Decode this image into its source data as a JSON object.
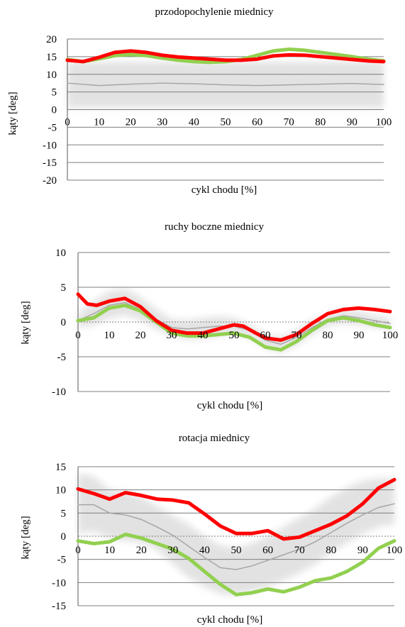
{
  "chart_data": [
    {
      "type": "line",
      "title": "przodopochylenie miednicy",
      "xlabel": "cykl chodu [%]",
      "ylabel": "kąty [deg]",
      "xlim": [
        0,
        100
      ],
      "ylim": [
        -20,
        20
      ],
      "xticks": [
        0,
        10,
        20,
        30,
        40,
        50,
        60,
        70,
        80,
        90,
        100
      ],
      "yticks": [
        -20,
        -15,
        -10,
        -5,
        0,
        5,
        10,
        15,
        20
      ],
      "gridlines": [
        -20,
        -15,
        -10,
        -5,
        0,
        5,
        10,
        15,
        20
      ],
      "reference_band": {
        "color": "#d9d9d9",
        "x": [
          0,
          10,
          20,
          30,
          40,
          50,
          60,
          70,
          80,
          90,
          100
        ],
        "lower": [
          0.5,
          0.5,
          0.5,
          0.5,
          0.5,
          0.5,
          0.5,
          0.5,
          0.5,
          0.5,
          0.5
        ],
        "upper": [
          13.5,
          13.5,
          13.5,
          13.5,
          13.5,
          13.5,
          13.5,
          13.5,
          13.5,
          13.5,
          13.5
        ]
      },
      "series": [
        {
          "color": "#a6a6a6",
          "width": 1.5,
          "x": [
            0,
            10,
            20,
            30,
            40,
            50,
            60,
            70,
            80,
            90,
            100
          ],
          "values": [
            7.5,
            6.8,
            7.2,
            7.5,
            7.3,
            7.0,
            6.8,
            7.0,
            7.2,
            7.4,
            7.1
          ]
        },
        {
          "color": "#92d050",
          "width": 5,
          "x": [
            0,
            5,
            10,
            15,
            20,
            25,
            30,
            35,
            40,
            45,
            50,
            55,
            60,
            65,
            70,
            75,
            80,
            85,
            90,
            95,
            100
          ],
          "values": [
            14.2,
            13.6,
            14.4,
            15.3,
            15.6,
            15.3,
            14.6,
            14.0,
            13.6,
            13.4,
            13.6,
            14.2,
            15.4,
            16.6,
            17.1,
            16.8,
            16.2,
            15.6,
            15.0,
            14.3,
            13.8
          ]
        },
        {
          "color": "#ff0000",
          "width": 5,
          "x": [
            0,
            5,
            10,
            15,
            20,
            25,
            30,
            35,
            40,
            45,
            50,
            55,
            60,
            65,
            70,
            75,
            80,
            85,
            90,
            95,
            100
          ],
          "values": [
            14.0,
            13.6,
            14.8,
            16.2,
            16.6,
            16.2,
            15.4,
            14.9,
            14.6,
            14.3,
            14.0,
            14.0,
            14.3,
            15.2,
            15.5,
            15.4,
            15.0,
            14.6,
            14.2,
            13.8,
            13.6
          ]
        }
      ]
    },
    {
      "type": "line",
      "title": "ruchy boczne miednicy",
      "xlabel": "cykl chodu [%]",
      "ylabel": "kąty [deg]",
      "xlim": [
        0,
        100
      ],
      "ylim": [
        -10,
        10
      ],
      "xticks": [
        0,
        10,
        20,
        30,
        40,
        50,
        60,
        70,
        80,
        90,
        100
      ],
      "yticks": [
        -10,
        -5,
        0,
        5,
        10
      ],
      "gridlines": [
        -10,
        -5,
        5,
        10
      ],
      "reference_band": {
        "color": "#d9d9d9",
        "x": [
          0,
          5,
          10,
          15,
          20,
          25,
          30,
          35,
          40,
          45,
          50,
          55,
          60,
          65,
          70,
          75,
          80,
          85,
          90,
          95,
          100
        ],
        "lower": [
          -0.8,
          -0.5,
          0.5,
          1.0,
          0.3,
          -1.0,
          -2.0,
          -2.5,
          -2.4,
          -2.0,
          -1.6,
          -2.2,
          -3.8,
          -4.4,
          -3.4,
          -1.8,
          -0.6,
          -0.2,
          -0.4,
          -0.8,
          -1.0
        ],
        "upper": [
          1.2,
          3.0,
          4.4,
          4.8,
          3.6,
          1.8,
          0.4,
          0.2,
          0.6,
          0.8,
          0.6,
          -0.4,
          -1.8,
          -2.2,
          -1.2,
          0.3,
          1.2,
          1.8,
          1.6,
          1.0,
          0.6
        ]
      },
      "series": [
        {
          "color": "#a6a6a6",
          "width": 1.5,
          "x": [
            0,
            5,
            10,
            15,
            20,
            25,
            30,
            35,
            40,
            45,
            50,
            55,
            60,
            65,
            70,
            75,
            80,
            85,
            90,
            95,
            100
          ],
          "values": [
            0.2,
            1.2,
            2.4,
            2.8,
            1.8,
            0.4,
            -0.8,
            -1.0,
            -0.8,
            -0.6,
            -0.6,
            -1.2,
            -2.6,
            -3.2,
            -2.2,
            -0.8,
            0.4,
            0.9,
            0.6,
            0.2,
            -0.2
          ]
        },
        {
          "color": "#92d050",
          "width": 5,
          "x": [
            0,
            5,
            10,
            15,
            20,
            25,
            30,
            35,
            40,
            45,
            50,
            55,
            60,
            65,
            70,
            75,
            80,
            85,
            90,
            95,
            100
          ],
          "values": [
            0.2,
            0.6,
            2.0,
            2.4,
            1.6,
            0.0,
            -1.6,
            -2.0,
            -2.0,
            -1.8,
            -1.6,
            -2.2,
            -3.6,
            -4.0,
            -2.8,
            -1.2,
            0.2,
            0.6,
            0.2,
            -0.4,
            -0.8
          ]
        },
        {
          "color": "#ff0000",
          "width": 5,
          "x": [
            0,
            3,
            6,
            10,
            15,
            20,
            25,
            30,
            35,
            40,
            45,
            50,
            53,
            57,
            60,
            65,
            70,
            75,
            80,
            85,
            90,
            95,
            100
          ],
          "values": [
            4.0,
            2.6,
            2.4,
            3.0,
            3.4,
            2.2,
            0.2,
            -1.2,
            -1.6,
            -1.6,
            -1.0,
            -0.4,
            -0.6,
            -1.6,
            -2.3,
            -2.6,
            -1.8,
            -0.2,
            1.2,
            1.8,
            2.0,
            1.8,
            1.5
          ]
        }
      ]
    },
    {
      "type": "line",
      "title": "rotacja miednicy",
      "xlabel": "cykl chodu [%]",
      "ylabel": "kąty [deg]",
      "xlim": [
        0,
        100
      ],
      "ylim": [
        -15,
        15
      ],
      "xticks": [
        0,
        10,
        20,
        30,
        40,
        50,
        60,
        70,
        80,
        90,
        100
      ],
      "yticks": [
        -15,
        -10,
        -5,
        0,
        5,
        10,
        15
      ],
      "gridlines": [
        -15,
        -10,
        -5,
        5,
        10,
        15
      ],
      "reference_band": {
        "color": "#d9d9d9",
        "x": [
          0,
          5,
          10,
          15,
          20,
          25,
          30,
          35,
          40,
          45,
          50,
          55,
          60,
          65,
          70,
          75,
          80,
          85,
          90,
          95,
          100
        ],
        "lower": [
          0.5,
          1.0,
          -0.5,
          -1.0,
          -1.5,
          -3.0,
          -6.0,
          -9.0,
          -11.0,
          -12.5,
          -12.8,
          -12.0,
          -11.0,
          -9.5,
          -8.0,
          -6.0,
          -3.5,
          -1.5,
          0.5,
          2.0,
          2.5
        ],
        "upper": [
          13.5,
          13.0,
          10.0,
          9.5,
          8.5,
          6.5,
          4.5,
          2.5,
          0.0,
          -2.0,
          -2.5,
          -1.5,
          0.0,
          2.0,
          4.0,
          6.0,
          8.5,
          10.5,
          12.0,
          12.5,
          12.5
        ]
      },
      "series": [
        {
          "color": "#a6a6a6",
          "width": 1.5,
          "x": [
            0,
            5,
            10,
            15,
            20,
            25,
            30,
            35,
            40,
            45,
            50,
            55,
            60,
            65,
            70,
            75,
            80,
            85,
            90,
            95,
            100
          ],
          "values": [
            6.8,
            6.8,
            5.0,
            4.6,
            3.6,
            2.0,
            0.2,
            -2.2,
            -4.6,
            -6.8,
            -7.2,
            -6.4,
            -5.2,
            -4.0,
            -2.8,
            -1.2,
            0.8,
            2.8,
            4.6,
            6.2,
            7.0
          ]
        },
        {
          "color": "#92d050",
          "width": 5,
          "x": [
            0,
            5,
            10,
            15,
            20,
            25,
            30,
            35,
            40,
            45,
            50,
            55,
            60,
            65,
            70,
            75,
            80,
            85,
            90,
            95,
            100
          ],
          "values": [
            -1.0,
            -1.6,
            -1.2,
            0.4,
            -0.4,
            -1.6,
            -2.8,
            -4.8,
            -7.6,
            -10.4,
            -12.6,
            -12.2,
            -11.4,
            -12.0,
            -11.0,
            -9.6,
            -9.0,
            -7.6,
            -5.6,
            -2.6,
            -1.0
          ]
        },
        {
          "color": "#ff0000",
          "width": 5,
          "x": [
            0,
            5,
            10,
            15,
            20,
            25,
            30,
            35,
            40,
            45,
            50,
            55,
            60,
            65,
            70,
            75,
            80,
            85,
            90,
            95,
            100
          ],
          "values": [
            10.2,
            9.2,
            8.0,
            9.4,
            8.8,
            8.0,
            7.8,
            7.2,
            4.8,
            2.2,
            0.6,
            0.6,
            1.2,
            -0.6,
            -0.2,
            1.2,
            2.6,
            4.4,
            7.0,
            10.4,
            12.2
          ]
        }
      ]
    }
  ]
}
